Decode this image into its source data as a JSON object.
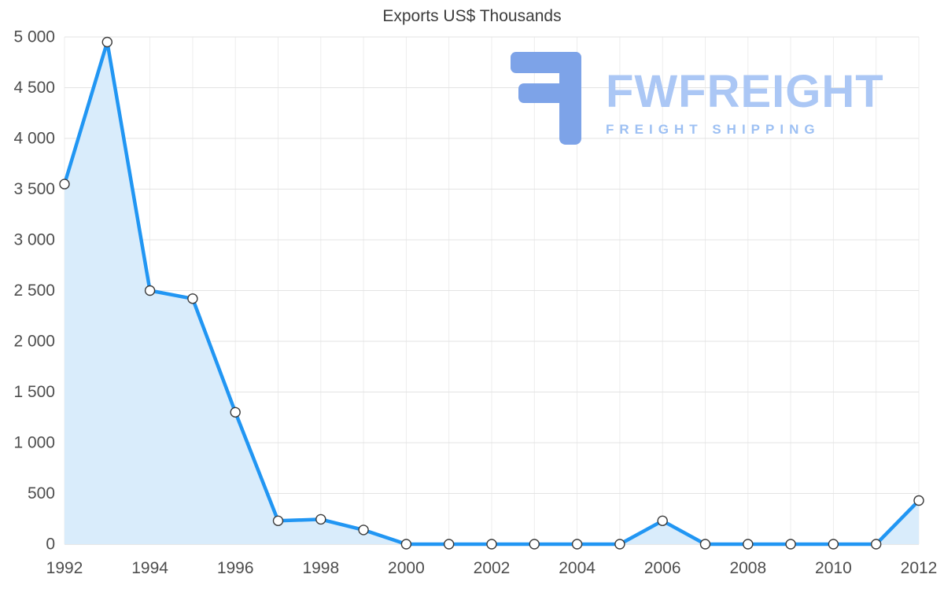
{
  "chart_data": {
    "type": "area",
    "title": "Exports US$ Thousands",
    "x": [
      1992,
      1993,
      1994,
      1995,
      1996,
      1997,
      1998,
      1999,
      2000,
      2001,
      2002,
      2003,
      2004,
      2005,
      2006,
      2007,
      2008,
      2009,
      2010,
      2011,
      2012
    ],
    "values": [
      3550,
      4950,
      2500,
      2420,
      1300,
      230,
      245,
      140,
      0,
      0,
      0,
      0,
      0,
      0,
      230,
      0,
      0,
      0,
      0,
      0,
      430
    ],
    "x_tick_labels": [
      "1992",
      "1994",
      "1996",
      "1998",
      "2000",
      "2002",
      "2004",
      "2006",
      "2008",
      "2010",
      "2012"
    ],
    "y_ticks": [
      0,
      500,
      1000,
      1500,
      2000,
      2500,
      3000,
      3500,
      4000,
      4500,
      5000
    ],
    "y_tick_labels": [
      "0",
      "500",
      "1 000",
      "1 500",
      "2 000",
      "2 500",
      "3 000",
      "3 500",
      "4 000",
      "4 500",
      "5 000"
    ],
    "xlabel": "",
    "ylabel": "",
    "ylim": [
      0,
      5000
    ],
    "grid": true,
    "legend": "none",
    "line_color": "#2196f3",
    "fill_color": "#d9ecfb",
    "grid_color": "#e3e3e3",
    "axis_line_color": "#cfcfcf",
    "label_color": "#4d4d4d",
    "marker": {
      "fill": "#ffffff",
      "stroke": "#3b3b3b"
    }
  },
  "watermark": {
    "brand": "FWFREIGHT",
    "tagline": "FREIGHT SHIPPING",
    "brand_color": "#abc7f5",
    "tagline_color": "#9dc0f3",
    "logo_color": "#7da3e8"
  }
}
